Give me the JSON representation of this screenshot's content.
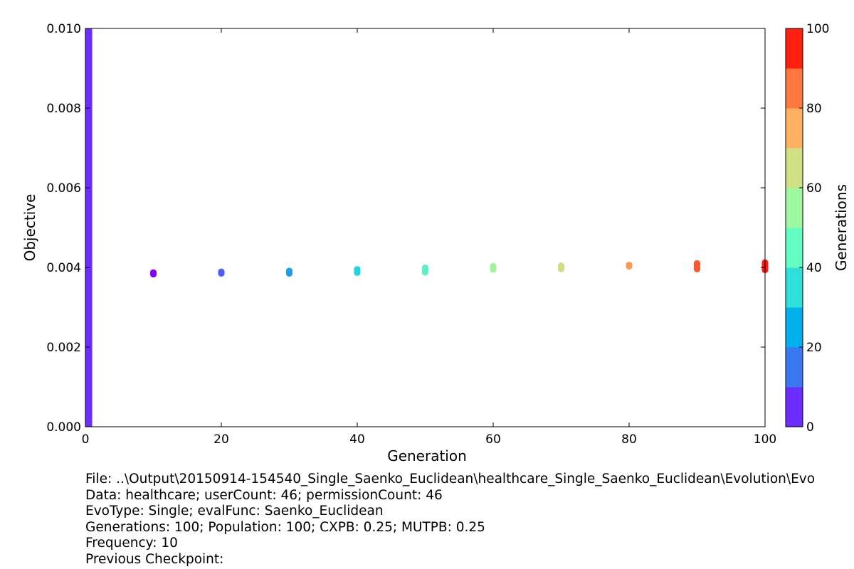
{
  "chart_data": {
    "type": "scatter",
    "title": "",
    "xlabel": "Generation",
    "ylabel": "Objective",
    "xlim": [
      0,
      100
    ],
    "ylim": [
      0,
      0.01
    ],
    "xticks": [
      "0",
      "20",
      "40",
      "60",
      "80",
      "100"
    ],
    "yticks": [
      "0.000",
      "0.002",
      "0.004",
      "0.006",
      "0.008",
      "0.010"
    ],
    "grid": false,
    "initial_bar": {
      "x": [
        0,
        1
      ],
      "y": [
        0,
        0.01
      ],
      "color": "#6a2cff"
    },
    "clusters": [
      {
        "x": 10,
        "y_min": 0.00382,
        "y_max": 0.00388,
        "color": "#7f00ff"
      },
      {
        "x": 20,
        "y_min": 0.00384,
        "y_max": 0.0039,
        "color": "#4f5cf5"
      },
      {
        "x": 30,
        "y_min": 0.00384,
        "y_max": 0.00392,
        "color": "#1f9ee8"
      },
      {
        "x": 40,
        "y_min": 0.00386,
        "y_max": 0.00396,
        "color": "#1fd4dd"
      },
      {
        "x": 50,
        "y_min": 0.00387,
        "y_max": 0.004,
        "color": "#5cf0c7"
      },
      {
        "x": 60,
        "y_min": 0.00394,
        "y_max": 0.00404,
        "color": "#a3f59c"
      },
      {
        "x": 70,
        "y_min": 0.00395,
        "y_max": 0.00405,
        "color": "#d2dc82"
      },
      {
        "x": 80,
        "y_min": 0.00402,
        "y_max": 0.00407,
        "color": "#ff9a50"
      },
      {
        "x": 90,
        "y_min": 0.00395,
        "y_max": 0.00411,
        "color": "#ff5530"
      },
      {
        "x": 100,
        "y_min": 0.00393,
        "y_max": 0.00413,
        "color": "#ff1a0d"
      }
    ],
    "colorbar": {
      "label": "Generations",
      "range": [
        0,
        100
      ],
      "ticks": [
        "0",
        "20",
        "40",
        "60",
        "80",
        "100"
      ],
      "colors": [
        "#6a2cff",
        "#3a78f2",
        "#00b0ec",
        "#2ee0d9",
        "#63fcc3",
        "#9cf9a0",
        "#d0e084",
        "#ffb060",
        "#ff7840",
        "#ff2010"
      ]
    }
  },
  "info": {
    "file": "File: ..\\Output\\20150914-154540_Single_Saenko_Euclidean\\healthcare_Single_Saenko_Euclidean\\Evolution\\Evo",
    "data": "Data: healthcare; userCount: 46; permissionCount: 46",
    "evotype": "EvoType: Single; evalFunc: Saenko_Euclidean",
    "generations": "Generations: 100; Population: 100; CXPB: 0.25; MUTPB: 0.25",
    "frequency": "Frequency: 10",
    "previous": "Previous Checkpoint:"
  }
}
